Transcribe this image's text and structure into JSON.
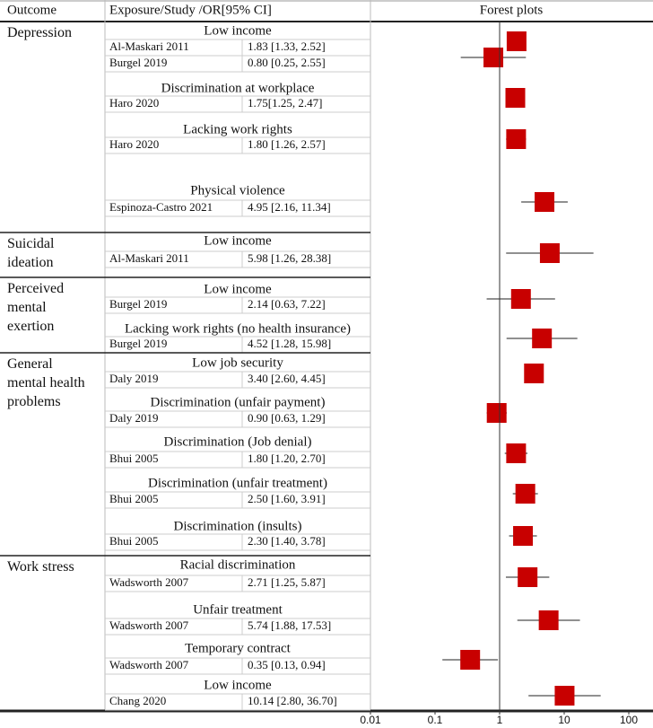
{
  "chart_data": {
    "type": "forest",
    "headers": [
      "Outcome",
      "Exposure/Study /OR[95% CI]",
      "Forest plots"
    ],
    "xscale": "log",
    "xlim": [
      0.01,
      237
    ],
    "xticks": [
      0.01,
      0.1,
      1,
      10,
      100
    ],
    "color": "#c80000",
    "groups": [
      {
        "outcome": "Depression",
        "exposures": [
          {
            "name": "Low income",
            "studies": [
              {
                "name": "Al-Maskari 2011",
                "or": 1.83,
                "lo": 1.33,
                "hi": 2.52,
                "value_label": "1.83 [1.33, 2.52]"
              },
              {
                "name": "Burgel 2019",
                "or": 0.8,
                "lo": 0.25,
                "hi": 2.55,
                "value_label": "0.80 [0.25, 2.55]"
              }
            ]
          },
          {
            "name": "Discrimination at workplace",
            "studies": [
              {
                "name": "Haro 2020",
                "or": 1.75,
                "lo": 1.25,
                "hi": 2.47,
                "value_label": "1.75[1.25, 2.47]"
              }
            ]
          },
          {
            "name": "Lacking work rights",
            "studies": [
              {
                "name": "Haro 2020",
                "or": 1.8,
                "lo": 1.26,
                "hi": 2.57,
                "value_label": "1.80 [1.26, 2.57]"
              }
            ]
          },
          {
            "name": "Physical violence",
            "studies": [
              {
                "name": "Espinoza-Castro 2021",
                "or": 4.95,
                "lo": 2.16,
                "hi": 11.34,
                "value_label": "4.95 [2.16, 11.34]"
              }
            ]
          }
        ]
      },
      {
        "outcome": "Suicidal ideation",
        "exposures": [
          {
            "name": "Low income",
            "studies": [
              {
                "name": "Al-Maskari 2011",
                "or": 5.98,
                "lo": 1.26,
                "hi": 28.38,
                "value_label": "5.98 [1.26, 28.38]"
              }
            ]
          }
        ]
      },
      {
        "outcome": "Perceived mental exertion",
        "exposures": [
          {
            "name": "Low income",
            "studies": [
              {
                "name": "Burgel 2019",
                "or": 2.14,
                "lo": 0.63,
                "hi": 7.22,
                "value_label": "2.14 [0.63, 7.22]"
              }
            ]
          },
          {
            "name": "Lacking work rights (no health insurance)",
            "studies": [
              {
                "name": "Burgel 2019",
                "or": 4.52,
                "lo": 1.28,
                "hi": 15.98,
                "value_label": "4.52 [1.28, 15.98]"
              }
            ]
          }
        ]
      },
      {
        "outcome": "General mental health problems",
        "exposures": [
          {
            "name": "Low job security",
            "studies": [
              {
                "name": "Daly 2019",
                "or": 3.4,
                "lo": 2.6,
                "hi": 4.45,
                "value_label": "3.40 [2.60, 4.45]"
              }
            ]
          },
          {
            "name": "Discrimination (unfair payment)",
            "studies": [
              {
                "name": "Daly 2019",
                "or": 0.9,
                "lo": 0.63,
                "hi": 1.29,
                "value_label": "0.90 [0.63, 1.29]"
              }
            ]
          },
          {
            "name": "Discrimination (Job denial)",
            "studies": [
              {
                "name": "Bhui 2005",
                "or": 1.8,
                "lo": 1.2,
                "hi": 2.7,
                "value_label": "1.80 [1.20, 2.70]"
              }
            ]
          },
          {
            "name": "Discrimination (unfair treatment)",
            "studies": [
              {
                "name": "Bhui 2005",
                "or": 2.5,
                "lo": 1.6,
                "hi": 3.91,
                "value_label": "2.50 [1.60, 3.91]"
              }
            ]
          },
          {
            "name": "Discrimination (insults)",
            "studies": [
              {
                "name": "Bhui 2005",
                "or": 2.3,
                "lo": 1.4,
                "hi": 3.78,
                "value_label": "2.30 [1.40, 3.78]"
              }
            ]
          }
        ]
      },
      {
        "outcome": "Work stress",
        "exposures": [
          {
            "name": "Racial discrimination",
            "studies": [
              {
                "name": "Wadsworth 2007",
                "or": 2.71,
                "lo": 1.25,
                "hi": 5.87,
                "value_label": "2.71 [1.25, 5.87]"
              }
            ]
          },
          {
            "name": "Unfair treatment",
            "studies": [
              {
                "name": "Wadsworth 2007",
                "or": 5.74,
                "lo": 1.88,
                "hi": 17.53,
                "value_label": "5.74 [1.88, 17.53]"
              }
            ]
          },
          {
            "name": "Temporary contract",
            "studies": [
              {
                "name": "Wadsworth 2007",
                "or": 0.35,
                "lo": 0.13,
                "hi": 0.94,
                "value_label": "0.35 [0.13, 0.94]"
              }
            ]
          },
          {
            "name": "Low income",
            "studies": [
              {
                "name": "Chang 2020",
                "or": 10.14,
                "lo": 2.8,
                "hi": 36.7,
                "value_label": "10.14 [2.80, 36.70]"
              }
            ]
          }
        ]
      }
    ]
  }
}
